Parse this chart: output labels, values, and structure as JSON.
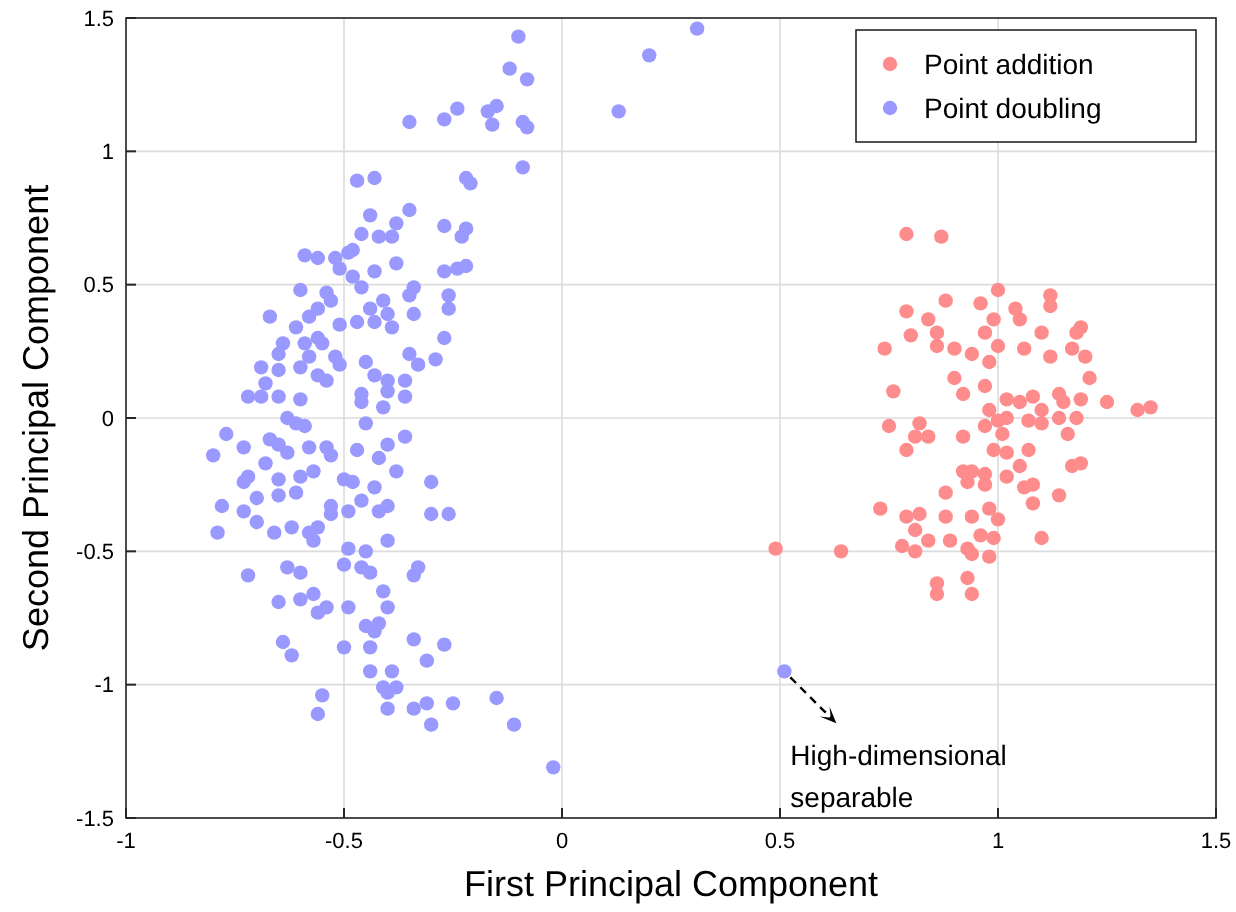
{
  "chart_data": {
    "type": "scatter",
    "xlabel": "First Principal Component",
    "ylabel": "Second Principal Component",
    "xlim": [
      -1,
      1.5
    ],
    "ylim": [
      -1.5,
      1.5
    ],
    "xticks": [
      -1,
      -0.5,
      0,
      0.5,
      1,
      1.5
    ],
    "yticks": [
      -1.5,
      -1,
      -0.5,
      0,
      0.5,
      1,
      1.5
    ],
    "grid": true,
    "legend": "top right",
    "marker": "circle",
    "annotations": [
      {
        "text": "High-dimensional separable",
        "x": 0.51,
        "y": -0.95
      }
    ],
    "series": [
      {
        "name": "Point addition",
        "color": "#ff8c8c",
        "x": [
          0.79,
          0.87,
          1.0,
          1.12,
          1.12,
          0.79,
          0.88,
          0.96,
          1.04,
          0.84,
          0.99,
          1.05,
          1.19,
          0.8,
          0.86,
          0.97,
          1.1,
          1.18,
          0.74,
          0.86,
          0.9,
          0.94,
          1.0,
          1.06,
          1.17,
          1.12,
          1.2,
          0.98,
          0.9,
          1.21,
          0.97,
          0.76,
          0.92,
          1.02,
          1.08,
          1.14,
          1.25,
          1.19,
          1.35,
          1.32,
          0.98,
          1.05,
          1.1,
          1.15,
          0.75,
          0.82,
          0.81,
          0.84,
          0.92,
          0.97,
          1.0,
          1.02,
          1.07,
          1.1,
          1.14,
          1.18,
          1.16,
          1.01,
          0.99,
          1.02,
          1.07,
          0.79,
          1.05,
          1.17,
          1.19,
          0.92,
          0.94,
          0.97,
          1.02,
          0.93,
          0.97,
          1.06,
          1.08,
          0.88,
          1.14,
          1.08,
          0.73,
          0.79,
          0.82,
          0.88,
          0.94,
          0.98,
          1.0,
          0.81,
          0.84,
          0.89,
          0.96,
          0.99,
          1.1,
          0.49,
          0.64,
          0.78,
          0.81,
          0.93,
          0.94,
          0.98,
          0.86,
          0.86,
          0.93,
          0.94
        ],
        "values": [
          0.69,
          0.68,
          0.48,
          0.46,
          0.42,
          0.4,
          0.44,
          0.43,
          0.41,
          0.37,
          0.37,
          0.37,
          0.34,
          0.31,
          0.32,
          0.32,
          0.32,
          0.32,
          0.26,
          0.27,
          0.26,
          0.24,
          0.27,
          0.26,
          0.26,
          0.23,
          0.23,
          0.21,
          0.15,
          0.15,
          0.12,
          0.1,
          0.09,
          0.07,
          0.08,
          0.09,
          0.06,
          0.07,
          0.04,
          0.03,
          0.03,
          0.06,
          0.03,
          0.06,
          -0.03,
          -0.02,
          -0.07,
          -0.07,
          -0.07,
          -0.03,
          -0.01,
          0.0,
          -0.01,
          -0.02,
          0.0,
          0.0,
          -0.06,
          -0.06,
          -0.12,
          -0.13,
          -0.12,
          -0.12,
          -0.18,
          -0.18,
          -0.17,
          -0.2,
          -0.2,
          -0.21,
          -0.22,
          -0.24,
          -0.25,
          -0.26,
          -0.25,
          -0.28,
          -0.29,
          -0.32,
          -0.34,
          -0.37,
          -0.36,
          -0.37,
          -0.37,
          -0.34,
          -0.38,
          -0.42,
          -0.46,
          -0.46,
          -0.44,
          -0.45,
          -0.45,
          -0.49,
          -0.5,
          -0.48,
          -0.5,
          -0.49,
          -0.51,
          -0.52,
          -0.62,
          -0.66,
          -0.6,
          -0.66
        ]
      },
      {
        "name": "Point doubling",
        "color": "#9999ff",
        "x": [
          -0.1,
          0.2,
          -0.12,
          -0.08,
          0.13,
          -0.35,
          -0.27,
          -0.24,
          -0.17,
          -0.15,
          -0.16,
          -0.09,
          -0.08,
          -0.09,
          -0.47,
          -0.43,
          -0.22,
          -0.21,
          -0.44,
          -0.35,
          -0.38,
          -0.46,
          -0.42,
          -0.39,
          -0.27,
          -0.23,
          -0.22,
          -0.59,
          -0.56,
          -0.52,
          -0.49,
          -0.48,
          -0.51,
          -0.48,
          -0.46,
          -0.43,
          -0.38,
          -0.27,
          -0.24,
          -0.22,
          -0.6,
          -0.54,
          -0.53,
          -0.56,
          -0.58,
          -0.67,
          -0.61,
          -0.51,
          -0.47,
          -0.44,
          -0.41,
          -0.43,
          -0.4,
          -0.39,
          -0.34,
          -0.35,
          -0.34,
          -0.26,
          -0.26,
          -0.27,
          -0.29,
          -0.35,
          -0.33,
          -0.64,
          -0.59,
          -0.56,
          -0.55,
          -0.65,
          -0.58,
          -0.52,
          -0.51,
          -0.69,
          -0.65,
          -0.6,
          -0.56,
          -0.54,
          -0.45,
          -0.43,
          -0.4,
          -0.36,
          -0.68,
          -0.72,
          -0.69,
          -0.65,
          -0.6,
          -0.46,
          -0.46,
          -0.41,
          -0.4,
          -0.36,
          -0.63,
          -0.61,
          -0.59,
          -0.77,
          -0.73,
          -0.8,
          -0.67,
          -0.65,
          -0.63,
          -0.58,
          -0.54,
          -0.53,
          -0.47,
          -0.45,
          -0.4,
          -0.42,
          -0.36,
          -0.68,
          -0.72,
          -0.73,
          -0.65,
          -0.6,
          -0.57,
          -0.5,
          -0.48,
          -0.38,
          -0.3,
          -0.7,
          -0.65,
          -0.61,
          -0.78,
          -0.73,
          -0.79,
          -0.7,
          -0.66,
          -0.62,
          -0.56,
          -0.58,
          -0.57,
          -0.53,
          -0.53,
          -0.49,
          -0.46,
          -0.43,
          -0.42,
          -0.4,
          -0.3,
          -0.26,
          -0.4,
          -0.72,
          -0.63,
          -0.6,
          -0.65,
          -0.6,
          -0.57,
          -0.56,
          -0.54,
          -0.49,
          -0.5,
          -0.49,
          -0.46,
          -0.45,
          -0.44,
          -0.41,
          -0.4,
          -0.34,
          -0.33,
          -0.45,
          -0.43,
          -0.42,
          -0.64,
          -0.62,
          -0.5,
          -0.44,
          -0.34,
          -0.31,
          -0.27,
          -0.44,
          -0.39,
          -0.55,
          -0.56,
          -0.41,
          -0.38,
          -0.4,
          -0.4,
          -0.34,
          -0.31,
          -0.3,
          -0.25,
          -0.15,
          -0.11,
          -0.02,
          0.31,
          0.51
        ],
        "values": [
          1.43,
          1.36,
          1.31,
          1.27,
          1.15,
          1.11,
          1.12,
          1.16,
          1.15,
          1.17,
          1.1,
          1.11,
          1.09,
          0.94,
          0.89,
          0.9,
          0.9,
          0.88,
          0.76,
          0.78,
          0.73,
          0.69,
          0.68,
          0.68,
          0.72,
          0.68,
          0.71,
          0.61,
          0.6,
          0.6,
          0.62,
          0.63,
          0.56,
          0.53,
          0.49,
          0.55,
          0.58,
          0.55,
          0.56,
          0.57,
          0.48,
          0.47,
          0.44,
          0.41,
          0.38,
          0.38,
          0.34,
          0.35,
          0.36,
          0.41,
          0.44,
          0.36,
          0.39,
          0.34,
          0.39,
          0.46,
          0.49,
          0.46,
          0.41,
          0.3,
          0.22,
          0.24,
          0.2,
          0.28,
          0.28,
          0.3,
          0.28,
          0.24,
          0.23,
          0.23,
          0.2,
          0.19,
          0.18,
          0.19,
          0.16,
          0.14,
          0.21,
          0.16,
          0.14,
          0.14,
          0.13,
          0.08,
          0.08,
          0.08,
          0.07,
          0.09,
          0.06,
          0.04,
          0.1,
          0.08,
          0.0,
          -0.02,
          -0.03,
          -0.06,
          -0.11,
          -0.14,
          -0.08,
          -0.1,
          -0.13,
          -0.11,
          -0.11,
          -0.14,
          -0.12,
          -0.02,
          -0.1,
          -0.15,
          -0.07,
          -0.17,
          -0.22,
          -0.24,
          -0.23,
          -0.22,
          -0.2,
          -0.23,
          -0.24,
          -0.2,
          -0.24,
          -0.3,
          -0.29,
          -0.28,
          -0.33,
          -0.35,
          -0.43,
          -0.39,
          -0.43,
          -0.41,
          -0.41,
          -0.43,
          -0.46,
          -0.33,
          -0.36,
          -0.35,
          -0.31,
          -0.26,
          -0.35,
          -0.33,
          -0.36,
          -0.36,
          -0.46,
          -0.59,
          -0.56,
          -0.58,
          -0.69,
          -0.68,
          -0.66,
          -0.73,
          -0.71,
          -0.71,
          -0.55,
          -0.49,
          -0.56,
          -0.5,
          -0.58,
          -0.65,
          -0.71,
          -0.59,
          -0.56,
          -0.78,
          -0.8,
          -0.77,
          -0.84,
          -0.89,
          -0.86,
          -0.86,
          -0.83,
          -0.91,
          -0.85,
          -0.95,
          -0.95,
          -1.04,
          -1.11,
          -1.01,
          -1.01,
          -1.03,
          -1.09,
          -1.09,
          -1.07,
          -1.15,
          -1.07,
          -1.05,
          -1.15,
          -1.31,
          1.46,
          -0.95
        ]
      }
    ]
  }
}
